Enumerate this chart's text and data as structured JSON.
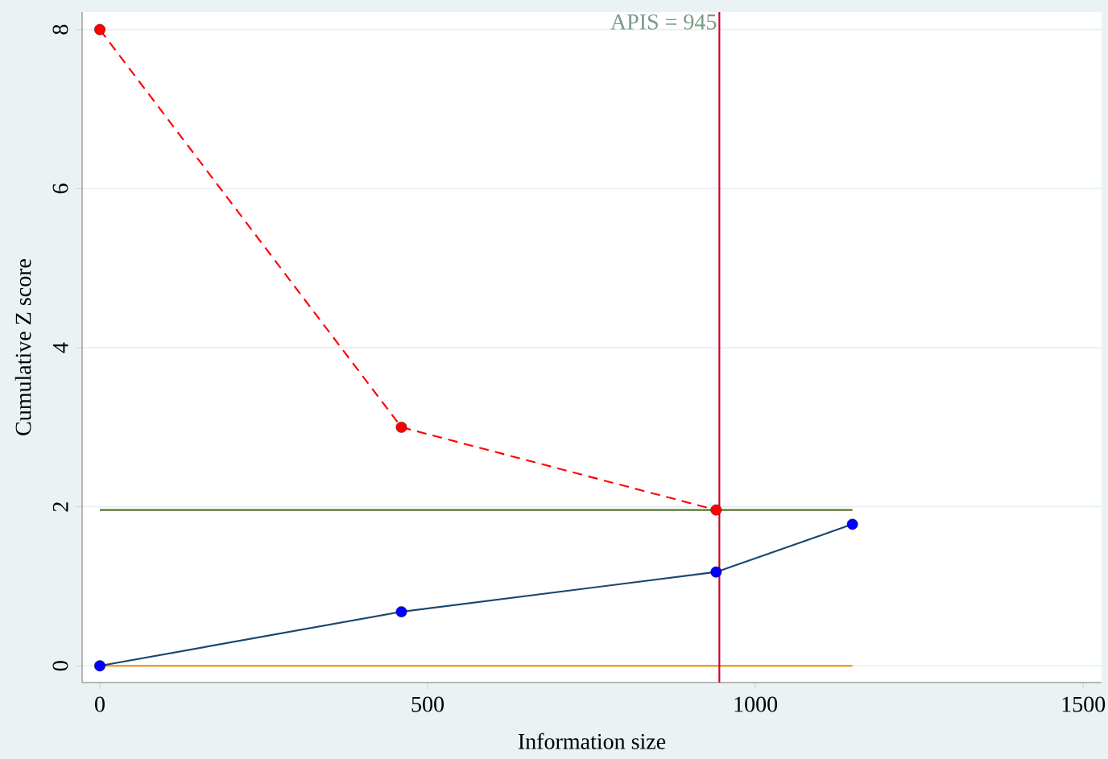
{
  "chart_data": {
    "type": "line",
    "xlabel": "Information size",
    "ylabel": "Cumulative Z score",
    "xlim": [
      -27,
      1528
    ],
    "ylim": [
      -0.21,
      8.22
    ],
    "xticks": [
      0,
      500,
      1000,
      1500
    ],
    "yticks": [
      0,
      2,
      4,
      6,
      8
    ],
    "grid": "y",
    "series": [
      {
        "x": [
          0,
          1148
        ],
        "values": [
          0,
          0
        ],
        "color": "#f28a00",
        "marker": "none",
        "line_style": "solid"
      },
      {
        "x": [
          0,
          1148
        ],
        "values": [
          1.96,
          1.96
        ],
        "color": "#55752f",
        "marker": "none",
        "line_style": "solid"
      },
      {
        "x": [
          0,
          460,
          940,
          1148
        ],
        "values": [
          0,
          0.68,
          1.18,
          1.78
        ],
        "color": "#1a476f",
        "colors": [
          "#0000ff",
          "#0000ff",
          "#0000ff",
          "#0000ff"
        ],
        "marker": "circle",
        "line_style": "solid"
      },
      {
        "x": [
          0,
          460,
          940
        ],
        "values": [
          8,
          3.0,
          1.96
        ],
        "color": "#ff0000",
        "marker": "circle",
        "line_style": "dashed"
      }
    ],
    "ref_lines": [
      {
        "axis": "x",
        "value": 945,
        "label": "APIS = 945",
        "color": "#d0002a"
      }
    ]
  }
}
